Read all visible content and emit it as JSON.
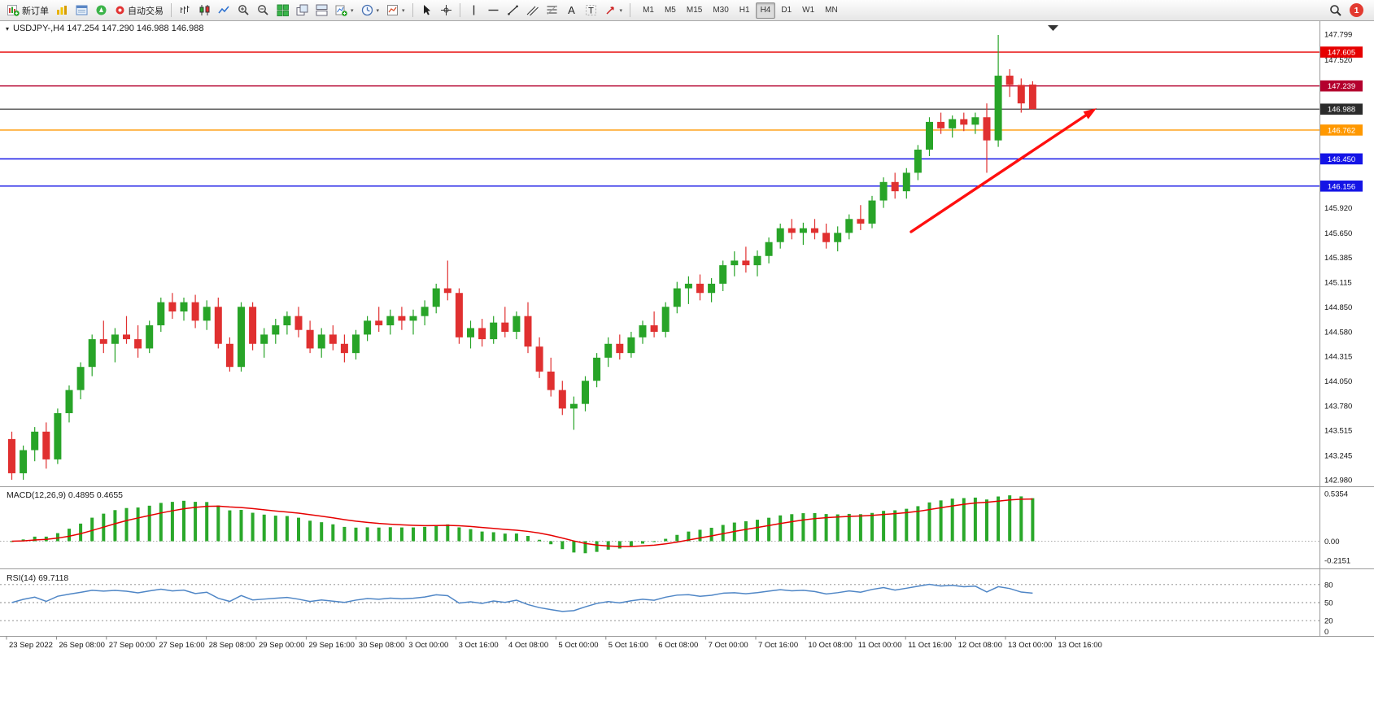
{
  "toolbar": {
    "new_order_label": "新订单",
    "auto_trading_label": "自动交易",
    "timeframes": [
      "M1",
      "M5",
      "M15",
      "M30",
      "H1",
      "H4",
      "D1",
      "W1",
      "MN"
    ],
    "active_timeframe": "H4",
    "notification_count": "1",
    "icons": [
      "new-order",
      "market-watch",
      "data-window",
      "navigator",
      "auto-trading",
      "bar-chart-type",
      "candlestick-type",
      "line-chart-type",
      "zoom-in",
      "zoom-out",
      "tile-windows",
      "cascade-windows",
      "tile-horizontal",
      "new-chart",
      "period-clock",
      "template",
      "cursor",
      "crosshair",
      "vertical-line",
      "horizontal-line",
      "trendline",
      "channel",
      "fibonacci",
      "text",
      "label",
      "arrows",
      "search",
      "notification"
    ]
  },
  "chart": {
    "header": "USDJPY-,H4 147.254 147.290 146.988 146.988",
    "symbol": "USDJPY-",
    "timeframe": "H4",
    "ohlc": {
      "open": "147.254",
      "high": "147.290",
      "low": "146.988",
      "close": "146.988"
    }
  },
  "chart_data": {
    "type": "candlestick",
    "title": "USDJPY- H4",
    "colors": {
      "bull": "#28a428",
      "bear": "#e03030",
      "background": "#ffffff",
      "axis_text": "#111111"
    },
    "price_range": [
      142.98,
      147.799
    ],
    "candles": [
      [
        143.42,
        143.5,
        142.98,
        143.05
      ],
      [
        143.05,
        143.35,
        142.98,
        143.3
      ],
      [
        143.3,
        143.55,
        143.18,
        143.5
      ],
      [
        143.5,
        143.6,
        143.1,
        143.2
      ],
      [
        143.2,
        143.75,
        143.15,
        143.7
      ],
      [
        143.7,
        144.0,
        143.6,
        143.95
      ],
      [
        143.95,
        144.25,
        143.85,
        144.2
      ],
      [
        144.2,
        144.55,
        144.1,
        144.5
      ],
      [
        144.5,
        144.7,
        144.35,
        144.45
      ],
      [
        144.45,
        144.62,
        144.25,
        144.55
      ],
      [
        144.55,
        144.75,
        144.45,
        144.5
      ],
      [
        144.5,
        144.65,
        144.3,
        144.4
      ],
      [
        144.4,
        144.7,
        144.35,
        144.65
      ],
      [
        144.65,
        144.95,
        144.58,
        144.9
      ],
      [
        144.9,
        145.0,
        144.72,
        144.8
      ],
      [
        144.8,
        144.95,
        144.7,
        144.9
      ],
      [
        144.9,
        144.98,
        144.62,
        144.7
      ],
      [
        144.7,
        144.92,
        144.6,
        144.85
      ],
      [
        144.85,
        144.95,
        144.4,
        144.45
      ],
      [
        144.45,
        144.52,
        144.15,
        144.2
      ],
      [
        144.2,
        144.9,
        144.15,
        144.85
      ],
      [
        144.85,
        144.9,
        144.38,
        144.45
      ],
      [
        144.45,
        144.62,
        144.3,
        144.55
      ],
      [
        144.55,
        144.72,
        144.45,
        144.65
      ],
      [
        144.65,
        144.8,
        144.55,
        144.75
      ],
      [
        144.75,
        144.85,
        144.52,
        144.6
      ],
      [
        144.6,
        144.7,
        144.35,
        144.4
      ],
      [
        144.4,
        144.62,
        144.3,
        144.55
      ],
      [
        144.55,
        144.65,
        144.38,
        144.45
      ],
      [
        144.45,
        144.55,
        144.25,
        144.35
      ],
      [
        144.35,
        144.6,
        144.28,
        144.55
      ],
      [
        144.55,
        144.75,
        144.48,
        144.7
      ],
      [
        144.7,
        144.85,
        144.58,
        144.65
      ],
      [
        144.65,
        144.82,
        144.55,
        144.75
      ],
      [
        144.75,
        144.85,
        144.6,
        144.7
      ],
      [
        144.7,
        144.82,
        144.55,
        144.75
      ],
      [
        144.75,
        144.92,
        144.65,
        144.85
      ],
      [
        144.85,
        145.1,
        144.78,
        145.05
      ],
      [
        145.05,
        145.35,
        144.92,
        145.0
      ],
      [
        145.0,
        145.05,
        144.45,
        144.52
      ],
      [
        144.52,
        144.7,
        144.4,
        144.62
      ],
      [
        144.62,
        144.72,
        144.42,
        144.5
      ],
      [
        144.5,
        144.75,
        144.45,
        144.68
      ],
      [
        144.68,
        144.85,
        144.52,
        144.58
      ],
      [
        144.58,
        144.8,
        144.5,
        144.75
      ],
      [
        144.75,
        144.9,
        144.35,
        144.42
      ],
      [
        144.42,
        144.52,
        144.08,
        144.15
      ],
      [
        144.15,
        144.3,
        143.88,
        143.95
      ],
      [
        143.95,
        144.05,
        143.68,
        143.75
      ],
      [
        143.75,
        143.88,
        143.52,
        143.8
      ],
      [
        143.8,
        144.1,
        143.72,
        144.05
      ],
      [
        144.05,
        144.35,
        143.98,
        144.3
      ],
      [
        144.3,
        144.52,
        144.2,
        144.45
      ],
      [
        144.45,
        144.55,
        144.28,
        144.35
      ],
      [
        144.35,
        144.58,
        144.3,
        144.52
      ],
      [
        144.52,
        144.7,
        144.45,
        144.65
      ],
      [
        144.65,
        144.8,
        144.52,
        144.58
      ],
      [
        144.58,
        144.9,
        144.52,
        144.85
      ],
      [
        144.85,
        145.12,
        144.78,
        145.05
      ],
      [
        145.05,
        145.18,
        144.88,
        145.1
      ],
      [
        145.1,
        145.2,
        144.92,
        145.0
      ],
      [
        145.0,
        145.16,
        144.9,
        145.1
      ],
      [
        145.1,
        145.35,
        145.02,
        145.3
      ],
      [
        145.3,
        145.45,
        145.18,
        145.35
      ],
      [
        145.35,
        145.5,
        145.22,
        145.3
      ],
      [
        145.3,
        145.46,
        145.18,
        145.4
      ],
      [
        145.4,
        145.6,
        145.32,
        145.55
      ],
      [
        145.55,
        145.75,
        145.48,
        145.7
      ],
      [
        145.7,
        145.8,
        145.58,
        145.65
      ],
      [
        145.65,
        145.76,
        145.52,
        145.7
      ],
      [
        145.7,
        145.8,
        145.58,
        145.65
      ],
      [
        145.65,
        145.75,
        145.48,
        145.55
      ],
      [
        145.55,
        145.72,
        145.45,
        145.65
      ],
      [
        145.65,
        145.85,
        145.58,
        145.8
      ],
      [
        145.8,
        145.95,
        145.68,
        145.75
      ],
      [
        145.75,
        146.05,
        145.7,
        146.0
      ],
      [
        146.0,
        146.25,
        145.92,
        146.2
      ],
      [
        146.2,
        146.3,
        146.02,
        146.1
      ],
      [
        146.1,
        146.35,
        146.02,
        146.3
      ],
      [
        146.3,
        146.6,
        146.22,
        146.55
      ],
      [
        146.55,
        146.9,
        146.48,
        146.85
      ],
      [
        146.85,
        146.95,
        146.72,
        146.78
      ],
      [
        146.78,
        146.92,
        146.68,
        146.88
      ],
      [
        146.88,
        146.95,
        146.75,
        146.82
      ],
      [
        146.82,
        146.95,
        146.72,
        146.9
      ],
      [
        146.9,
        147.05,
        146.3,
        146.65
      ],
      [
        146.65,
        147.79,
        146.58,
        147.35
      ],
      [
        147.35,
        147.42,
        147.12,
        147.25
      ],
      [
        147.25,
        147.32,
        146.95,
        147.05
      ],
      [
        147.254,
        147.29,
        146.988,
        146.988
      ]
    ],
    "price_lines": [
      {
        "price": 147.605,
        "color": "#e60000",
        "tag": "147.605",
        "width": 1.4
      },
      {
        "price": 147.239,
        "color": "#b4002d",
        "tag": "147.239",
        "width": 1.4
      },
      {
        "price": 146.988,
        "color": "#2b2b2b",
        "tag": "146.988",
        "width": 1.1
      },
      {
        "price": 146.762,
        "color": "#ff9800",
        "tag": "146.762",
        "width": 1.4
      },
      {
        "price": 146.45,
        "color": "#1414e6",
        "tag": "146.450",
        "width": 1.4
      },
      {
        "price": 146.156,
        "color": "#1414e6",
        "tag": "146.156",
        "width": 1.4
      }
    ],
    "price_scale_labels": [
      "147.799",
      "147.520",
      "145.920",
      "145.650",
      "145.385",
      "145.115",
      "144.850",
      "144.580",
      "144.315",
      "144.050",
      "143.780",
      "143.515",
      "143.245",
      "142.980"
    ],
    "time_labels": [
      "23 Sep 2022",
      "26 Sep 08:00",
      "27 Sep 00:00",
      "27 Sep 16:00",
      "28 Sep 08:00",
      "29 Sep 00:00",
      "29 Sep 16:00",
      "30 Sep 08:00",
      "3 Oct 00:00",
      "3 Oct 16:00",
      "4 Oct 08:00",
      "5 Oct 00:00",
      "5 Oct 16:00",
      "6 Oct 08:00",
      "7 Oct 00:00",
      "7 Oct 16:00",
      "10 Oct 08:00",
      "11 Oct 00:00",
      "11 Oct 16:00",
      "12 Oct 08:00",
      "13 Oct 00:00",
      "13 Oct 16:00"
    ],
    "indicators": {
      "macd": {
        "label": "MACD(12,26,9) 0.4895 0.4655",
        "params": [
          12,
          26,
          9
        ],
        "values": [
          0.4895,
          0.4655
        ],
        "histogram_color": "#2aa82a",
        "signal_color": "#e60000",
        "scale_labels": [
          {
            "text": "0.5354",
            "value": 0.5354
          },
          {
            "text": "0.00",
            "value": 0
          },
          {
            "text": "-0.2151",
            "value": -0.2151
          }
        ]
      },
      "rsi": {
        "label": "RSI(14) 69.7118",
        "period": 14,
        "value": 69.7118,
        "color": "#4f86c6",
        "levels": [
          80,
          50,
          20
        ],
        "scale_labels": [
          {
            "text": "80",
            "value": 80
          },
          {
            "text": "50",
            "value": 50
          },
          {
            "text": "20",
            "value": 20
          },
          {
            "text": "0",
            "value": 0
          }
        ]
      }
    },
    "annotation": {
      "type": "trend-arrow",
      "color": "#ff0f0f"
    }
  }
}
